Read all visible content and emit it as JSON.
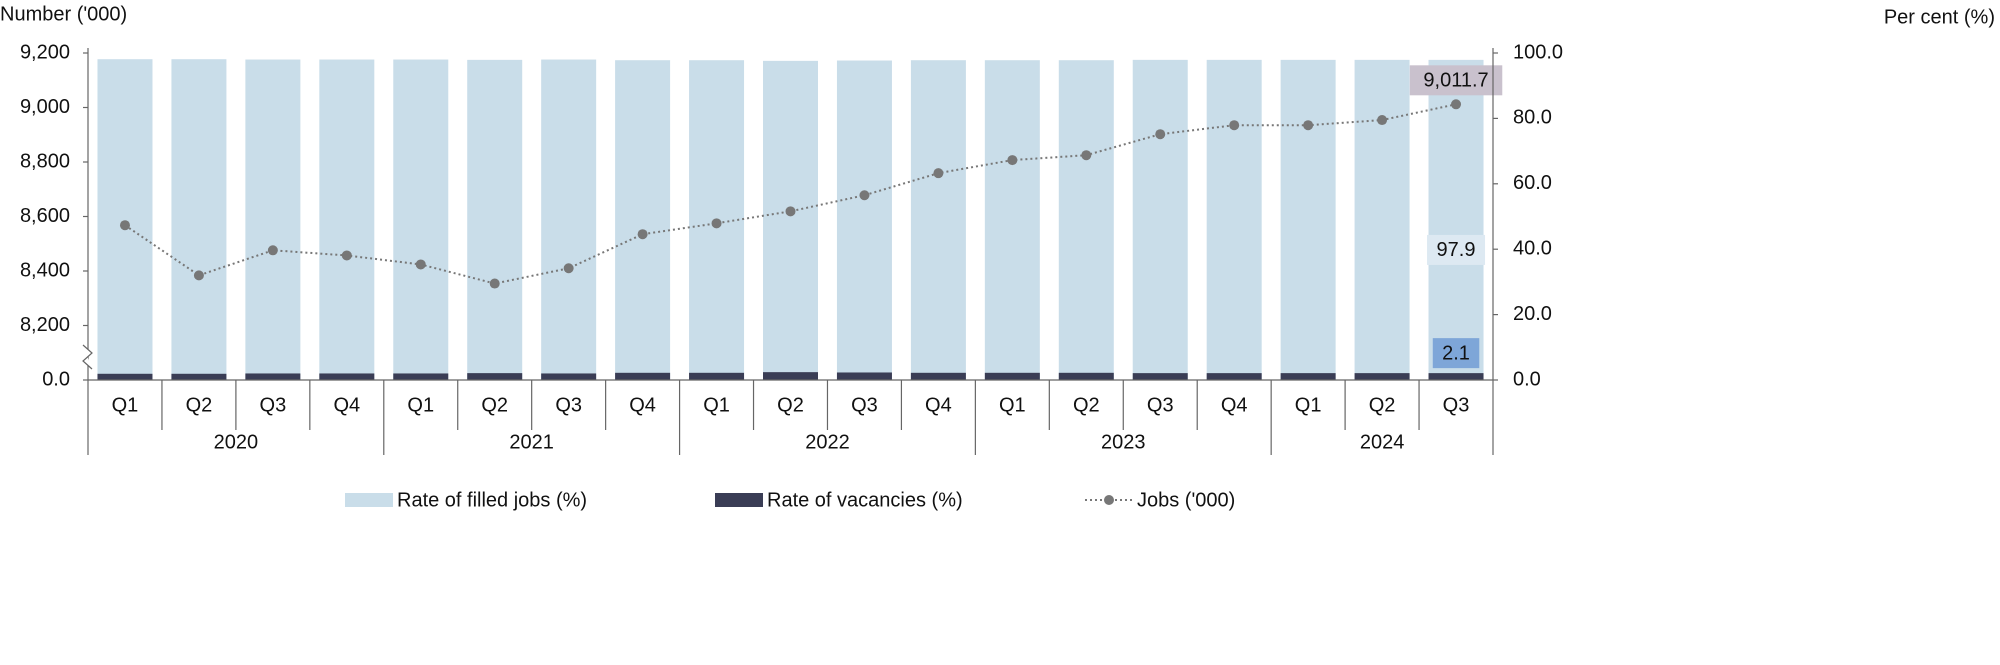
{
  "chart_data": {
    "type": "bar-line",
    "y_title": "Number ('000)",
    "y2_title": "Per cent (%)",
    "category_groups": [
      {
        "name": "2020",
        "categories": [
          "Q1",
          "Q2",
          "Q3",
          "Q4"
        ]
      },
      {
        "name": "2021",
        "categories": [
          "Q1",
          "Q2",
          "Q3",
          "Q4"
        ]
      },
      {
        "name": "2022",
        "categories": [
          "Q1",
          "Q2",
          "Q3",
          "Q4"
        ]
      },
      {
        "name": "2023",
        "categories": [
          "Q1",
          "Q2",
          "Q3",
          "Q4"
        ]
      },
      {
        "name": "2024",
        "categories": [
          "Q1",
          "Q2",
          "Q3"
        ]
      }
    ],
    "ylim": [
      0,
      9200
    ],
    "axis_break": [
      0,
      8000
    ],
    "yticks": [
      {
        "value": 0,
        "label": "0.0"
      },
      {
        "value": 8200,
        "label": "8,200"
      },
      {
        "value": 8400,
        "label": "8,400"
      },
      {
        "value": 8600,
        "label": "8,600"
      },
      {
        "value": 8800,
        "label": "8,800"
      },
      {
        "value": 9000,
        "label": "9,000"
      },
      {
        "value": 9200,
        "label": "9,200"
      }
    ],
    "y2lim": [
      0,
      100
    ],
    "y2ticks": [
      {
        "value": 0,
        "label": "0.0"
      },
      {
        "value": 20,
        "label": "20.0"
      },
      {
        "value": 40,
        "label": "40.0"
      },
      {
        "value": 60,
        "label": "60.0"
      },
      {
        "value": 80,
        "label": "80.0"
      },
      {
        "value": 100,
        "label": "100.0"
      }
    ],
    "series": [
      {
        "name": "Rate of filled jobs (%)",
        "kind": "bar",
        "axis": "y2",
        "color": "#c9dde9",
        "label_color": "#dde9f2",
        "values": [
          98.1,
          98.1,
          98.0,
          98.0,
          98.0,
          97.9,
          98.0,
          97.8,
          97.8,
          97.6,
          97.7,
          97.8,
          97.8,
          97.8,
          97.9,
          97.9,
          97.9,
          97.9,
          97.9
        ],
        "value_labels": [
          null,
          null,
          null,
          null,
          null,
          null,
          null,
          null,
          null,
          null,
          null,
          null,
          null,
          null,
          null,
          null,
          null,
          null,
          "97.9"
        ]
      },
      {
        "name": "Rate of vacancies (%)",
        "kind": "bar",
        "axis": "y2",
        "color": "#3a3d55",
        "label_color": "#7ea6d8",
        "values": [
          1.9,
          1.9,
          2.0,
          2.0,
          2.0,
          2.1,
          2.0,
          2.2,
          2.2,
          2.4,
          2.3,
          2.2,
          2.2,
          2.2,
          2.1,
          2.1,
          2.1,
          2.1,
          2.1
        ],
        "value_labels": [
          null,
          null,
          null,
          null,
          null,
          null,
          null,
          null,
          null,
          null,
          null,
          null,
          null,
          null,
          null,
          null,
          null,
          null,
          "2.1"
        ]
      },
      {
        "name": "Jobs ('000)",
        "kind": "line",
        "color": "#777777",
        "label_color": "#c9c1cd",
        "values": [
          8568,
          8384,
          8476,
          8457,
          8424,
          8354,
          8410,
          8535,
          8575,
          8619,
          8678,
          8759,
          8807,
          8825,
          8902,
          8935,
          8935,
          8954,
          9011.7
        ],
        "value_labels": [
          null,
          null,
          null,
          null,
          null,
          null,
          null,
          null,
          null,
          null,
          null,
          null,
          null,
          null,
          null,
          null,
          null,
          null,
          "9,011.7"
        ]
      }
    ]
  }
}
